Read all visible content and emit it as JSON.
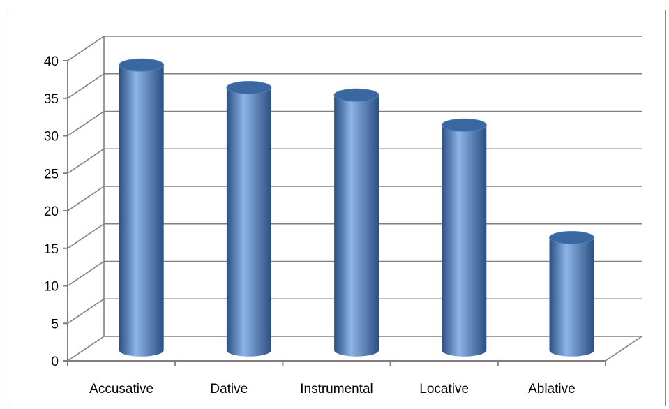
{
  "chart_data": {
    "type": "bar",
    "style": "3d-cylinder",
    "title": "",
    "xlabel": "",
    "ylabel": "",
    "categories": [
      "Accusative",
      "Dative",
      "Instrumental",
      "Locative",
      "Ablative"
    ],
    "series": [
      {
        "values": [
          38,
          35,
          34,
          30,
          15
        ]
      }
    ],
    "ylim": [
      0,
      40
    ],
    "yticks": [
      0,
      5,
      10,
      15,
      20,
      25,
      30,
      35,
      40
    ],
    "grid": true,
    "legend": "none",
    "colors": {
      "bar": "#4f81bd",
      "bar_dark": "#2b4f82",
      "bar_light": "#8cb4e6",
      "bar_top": "#3a67a0",
      "grid": "#808080",
      "axis": "#7f7f7f",
      "frame": "#8c8c8c"
    }
  }
}
